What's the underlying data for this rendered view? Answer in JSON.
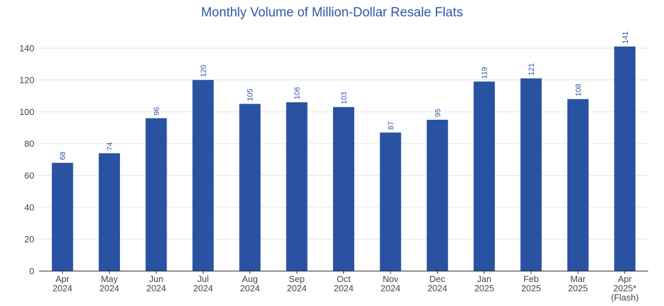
{
  "chart_data": {
    "type": "bar",
    "title": "Monthly Volume of Million-Dollar Resale Flats",
    "xlabel": "",
    "ylabel": "",
    "categories": [
      [
        "Apr",
        "2024"
      ],
      [
        "May",
        "2024"
      ],
      [
        "Jun",
        "2024"
      ],
      [
        "Jul",
        "2024"
      ],
      [
        "Aug",
        "2024"
      ],
      [
        "Sep",
        "2024"
      ],
      [
        "Oct",
        "2024"
      ],
      [
        "Nov",
        "2024"
      ],
      [
        "Dec",
        "2024"
      ],
      [
        "Jan",
        "2025"
      ],
      [
        "Feb",
        "2025"
      ],
      [
        "Mar",
        "2025"
      ],
      [
        "Apr",
        "2025*",
        "(Flash)"
      ]
    ],
    "values": [
      68,
      74,
      96,
      120,
      105,
      106,
      103,
      87,
      95,
      119,
      121,
      108,
      141
    ],
    "ylim": [
      0,
      150
    ],
    "yticks": [
      0,
      20,
      40,
      60,
      80,
      100,
      120,
      140
    ],
    "grid": true,
    "legend": "none",
    "bar_color": "#2a52a3",
    "label_color": "#2f56a8",
    "data_labels_rotated": true
  }
}
